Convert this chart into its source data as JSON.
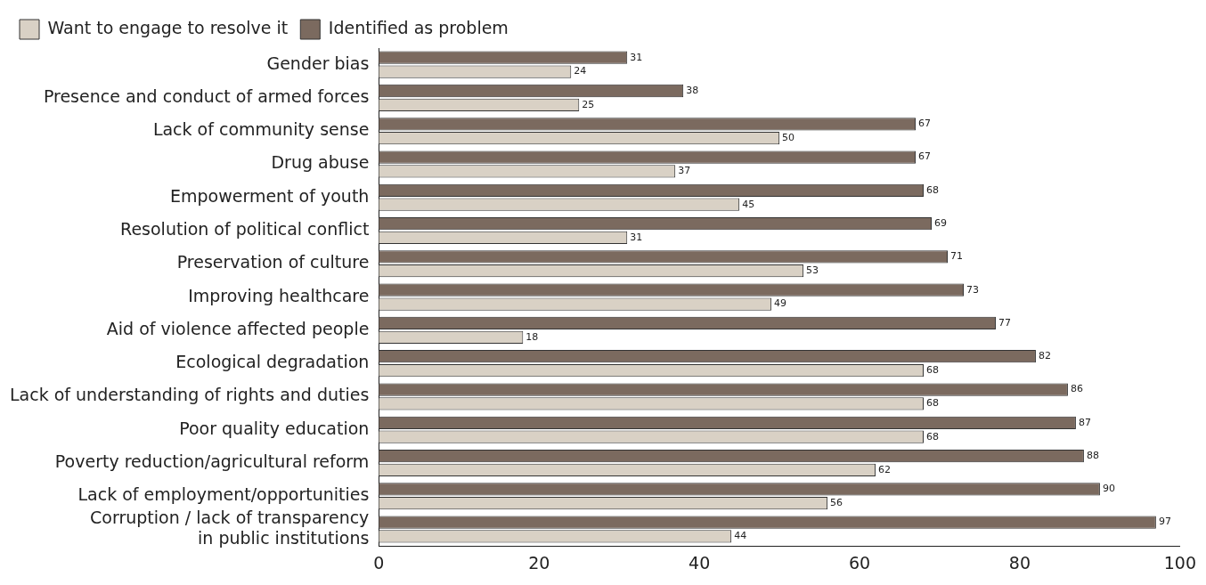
{
  "chart_data": {
    "type": "bar",
    "orientation": "horizontal",
    "categories": [
      "Gender bias",
      "Presence and conduct of armed forces",
      "Lack of community sense",
      "Drug abuse",
      "Empowerment of youth",
      "Resolution of political conflict",
      "Preservation of culture",
      "Improving healthcare",
      "Aid of violence affected people",
      "Ecological degradation",
      "Lack of understanding of rights and duties",
      "Poor quality education",
      "Poverty reduction/agricultural reform",
      "Lack of employment/opportunities",
      "Corruption / lack of transparency\nin public institutions"
    ],
    "series": [
      {
        "name": "Identified as problem",
        "color": "#7b6a5f",
        "values": [
          31,
          38,
          67,
          67,
          68,
          69,
          71,
          73,
          77,
          82,
          86,
          87,
          88,
          90,
          97
        ]
      },
      {
        "name": "Want to engage to resolve it",
        "color": "#d9d1c5",
        "values": [
          24,
          25,
          50,
          37,
          45,
          31,
          53,
          49,
          18,
          68,
          68,
          68,
          62,
          56,
          44
        ]
      }
    ],
    "xlim": [
      0,
      100
    ],
    "xticks": [
      0,
      20,
      40,
      60,
      80,
      100
    ],
    "grid": false,
    "legend": "top left",
    "data_labels": true
  }
}
